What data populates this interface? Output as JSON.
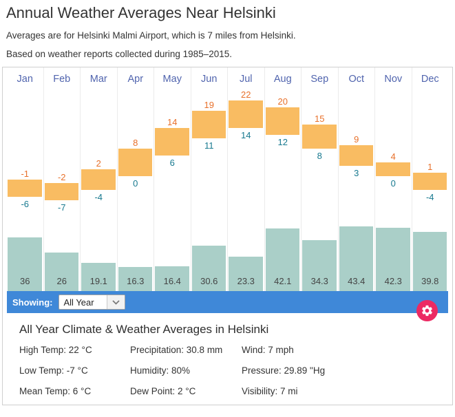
{
  "page": {
    "title": "Annual Weather Averages Near Helsinki",
    "subtitle_location": "Averages are for Helsinki Malmi Airport, which is 7 miles from Helsinki.",
    "subtitle_period": "Based on weather reports collected during 1985–2015."
  },
  "chart_data": {
    "type": "bar",
    "title": "Annual Weather Averages Near Helsinki",
    "categories": [
      "Jan",
      "Feb",
      "Mar",
      "Apr",
      "May",
      "Jun",
      "Jul",
      "Aug",
      "Sep",
      "Oct",
      "Nov",
      "Dec"
    ],
    "series": [
      {
        "name": "High Temp (°C)",
        "values": [
          -1,
          -2,
          2,
          8,
          14,
          19,
          22,
          20,
          15,
          9,
          4,
          1
        ]
      },
      {
        "name": "Low Temp (°C)",
        "values": [
          -6,
          -7,
          -4,
          0,
          6,
          11,
          14,
          12,
          8,
          3,
          0,
          -4
        ]
      },
      {
        "name": "Precipitation (mm)",
        "values": [
          36,
          26,
          19.1,
          16.3,
          16.4,
          30.6,
          23.3,
          42.1,
          34.3,
          43.4,
          42.3,
          39.8
        ]
      }
    ],
    "ylim_temp_c": [
      -9,
      24
    ],
    "ylim_precip_mm": [
      0,
      43.4
    ],
    "grid": "vertical-dividers",
    "legend": "none",
    "colors": {
      "temp_bar": "#f9bc62",
      "high_label": "#e8702a",
      "low_label": "#17798f",
      "precip_bar": "#aacfc8",
      "precip_label": "#444444",
      "month_label": "#5064ae"
    }
  },
  "showing_bar": {
    "label": "Showing:",
    "select_value": "All Year",
    "bar_color": "#3f88d8",
    "settings_button_color": "#ec2a63",
    "settings_icon": "gear-icon"
  },
  "summary": {
    "title": "All Year Climate & Weather Averages in Helsinki",
    "stats": [
      {
        "label": "High Temp",
        "value": "22 °C"
      },
      {
        "label": "Precipitation",
        "value": "30.8 mm"
      },
      {
        "label": "Wind",
        "value": "7 mph"
      },
      {
        "label": "Low Temp",
        "value": "-7 °C"
      },
      {
        "label": "Humidity",
        "value": "80%"
      },
      {
        "label": "Pressure",
        "value": "29.89 \"Hg"
      },
      {
        "label": "Mean Temp",
        "value": "6 °C"
      },
      {
        "label": "Dew Point",
        "value": "2 °C"
      },
      {
        "label": "Visibility",
        "value": "7 mi"
      }
    ]
  }
}
